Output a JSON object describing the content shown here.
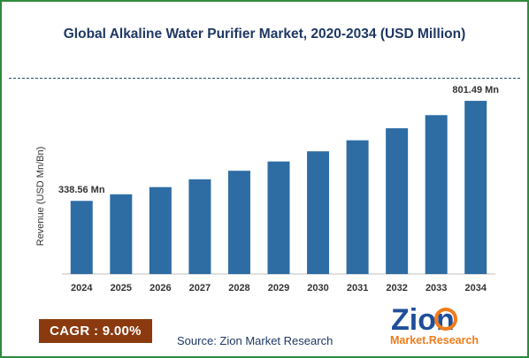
{
  "chart_data": {
    "type": "bar",
    "title": "Global Alkaline Water Purifier Market, 2020-2034 (USD Million)",
    "ylabel": "Revenue (USD Mn/Bn)",
    "xlabel": "",
    "categories": [
      "2024",
      "2025",
      "2026",
      "2027",
      "2028",
      "2029",
      "2030",
      "2031",
      "2032",
      "2033",
      "2034"
    ],
    "values": [
      338.56,
      369.03,
      402.24,
      438.44,
      477.9,
      520.91,
      567.8,
      618.9,
      674.6,
      735.31,
      801.49
    ],
    "ylim": [
      0,
      900
    ],
    "data_labels": [
      {
        "index": 0,
        "text": "338.56 Mn"
      },
      {
        "index": 10,
        "text": "801.49 Mn"
      }
    ],
    "bar_color": "#2e6da4",
    "grid": false
  },
  "cagr": {
    "label": "CAGR : 9.00%",
    "color": "#8b3a10"
  },
  "source": "Source: Zion Market Research",
  "logo": {
    "word1": "Zion",
    "word2": "Market.Research",
    "icon": "zion-logo"
  },
  "colors": {
    "border": "#2e8b3a",
    "title": "#1f3864"
  }
}
